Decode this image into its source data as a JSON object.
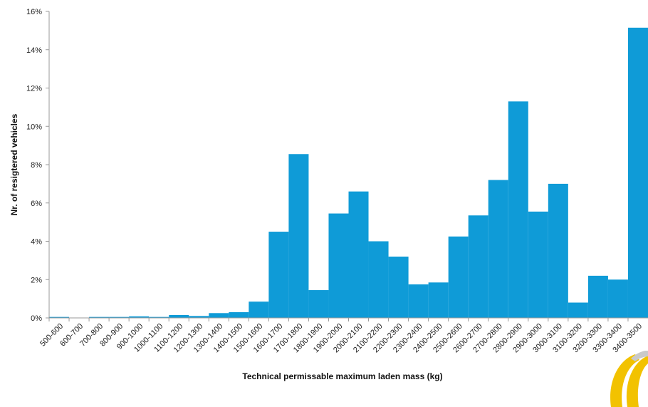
{
  "chart_data": {
    "type": "bar",
    "title": "",
    "xlabel": "Technical permissable maximum laden mass (kg)",
    "ylabel": "Nr. of resigtered vehicles",
    "ylim": [
      0,
      16
    ],
    "y_tick_step": 2,
    "y_unit": "%",
    "grid": false,
    "legend": "none",
    "colors": {
      "bar": "#0f9bd7",
      "axis": "#999999",
      "logo_gold": "#f2c200",
      "logo_gray": "#c9c9c9"
    },
    "categories": [
      "500-600",
      "600-700",
      "700-800",
      "800-900",
      "900-1000",
      "1000-1100",
      "1100-1200",
      "1200-1300",
      "1300-1400",
      "1400-1500",
      "1500-1600",
      "1600-1700",
      "1700-1800",
      "1800-1900",
      "1900-2000",
      "2000-2100",
      "2100-2200",
      "2200-2300",
      "2300-2400",
      "2400-2500",
      "2500-2600",
      "2600-2700",
      "2700-2800",
      "2800-2900",
      "2900-3000",
      "3000-3100",
      "3100-3200",
      "3200-3300",
      "3300-3400",
      "3400-3500"
    ],
    "values": [
      0.05,
      0.0,
      0.05,
      0.05,
      0.08,
      0.05,
      0.15,
      0.1,
      0.25,
      0.3,
      0.85,
      4.5,
      8.55,
      1.45,
      5.45,
      6.6,
      4.0,
      3.2,
      1.75,
      1.85,
      4.25,
      5.35,
      7.2,
      11.3,
      5.55,
      7.0,
      0.8,
      2.2,
      2.0,
      15.15
    ]
  },
  "logo": {
    "icon": "logo-rings-icon"
  }
}
